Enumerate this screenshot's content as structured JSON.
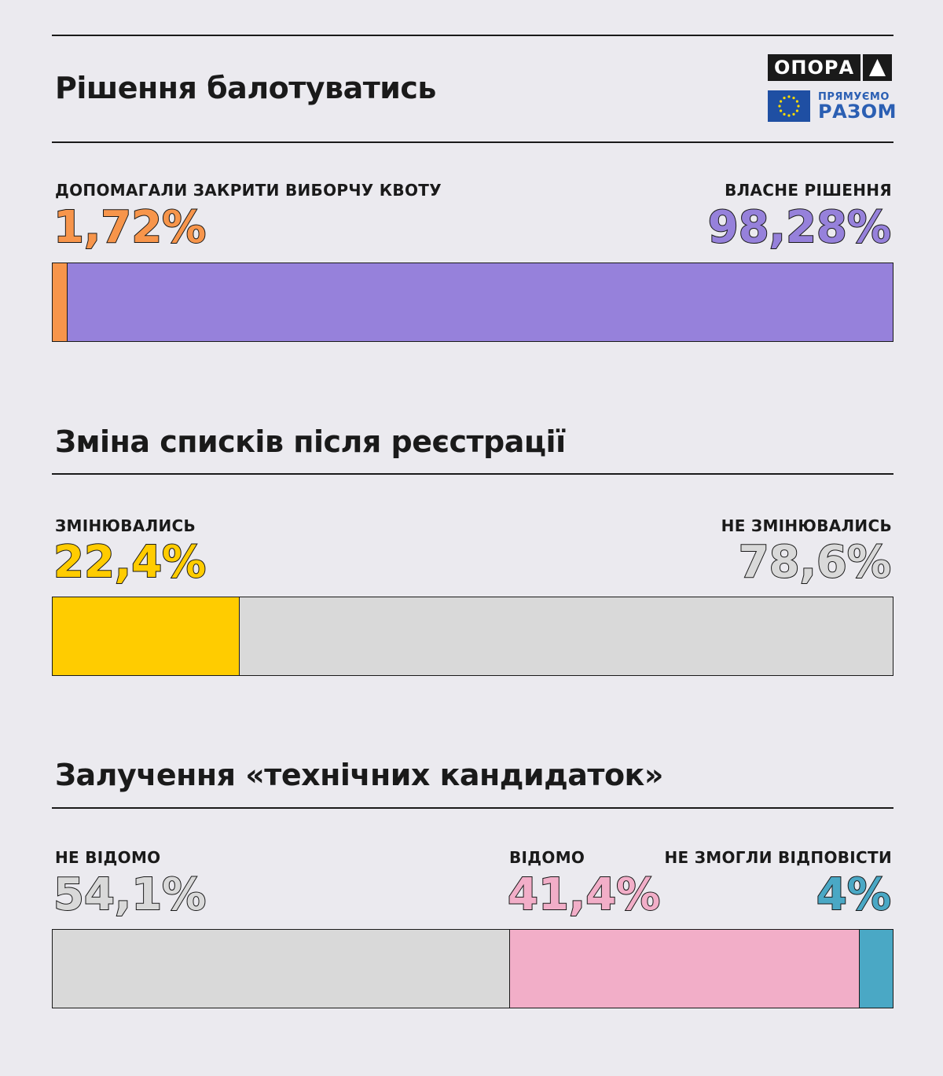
{
  "logos": {
    "opora": "ОПОРА",
    "eu_line1": "ПРЯМУЄМО",
    "eu_line2": "РАЗОМ"
  },
  "chart_data": [
    {
      "type": "bar",
      "title": "Рішення балотуватись",
      "stacked": true,
      "series": [
        {
          "name": "ДОПОМАГАЛИ ЗАКРИТИ ВИБОРЧУ КВОТУ",
          "label": "1,72%",
          "value": 1.72,
          "color": "#f7954b"
        },
        {
          "name": "ВЛАСНЕ РІШЕННЯ",
          "label": "98,28%",
          "value": 98.28,
          "color": "#9681db"
        }
      ]
    },
    {
      "type": "bar",
      "title": "Зміна списків після реєстрації",
      "stacked": true,
      "series": [
        {
          "name": "ЗМІНЮВАЛИСЬ",
          "label": "22,4%",
          "value": 22.4,
          "color": "#ffcc00"
        },
        {
          "name": "НЕ ЗМІНЮВАЛИСЬ",
          "label": "78,6%",
          "value": 78.6,
          "color": "#d9d9d9"
        }
      ]
    },
    {
      "type": "bar",
      "title": "Залучення «технічних кандидаток»",
      "stacked": true,
      "series": [
        {
          "name": "НЕ ВІДОМО",
          "label": "54,1%",
          "value": 54.1,
          "color": "#d9d9d9"
        },
        {
          "name": "ВІДОМО",
          "label": "41,4%",
          "value": 41.4,
          "color": "#f2aec8"
        },
        {
          "name": "НЕ ЗМОГЛИ ВІДПОВІСТИ",
          "label": "4%",
          "value": 4,
          "color": "#4aa8c5"
        }
      ]
    }
  ]
}
